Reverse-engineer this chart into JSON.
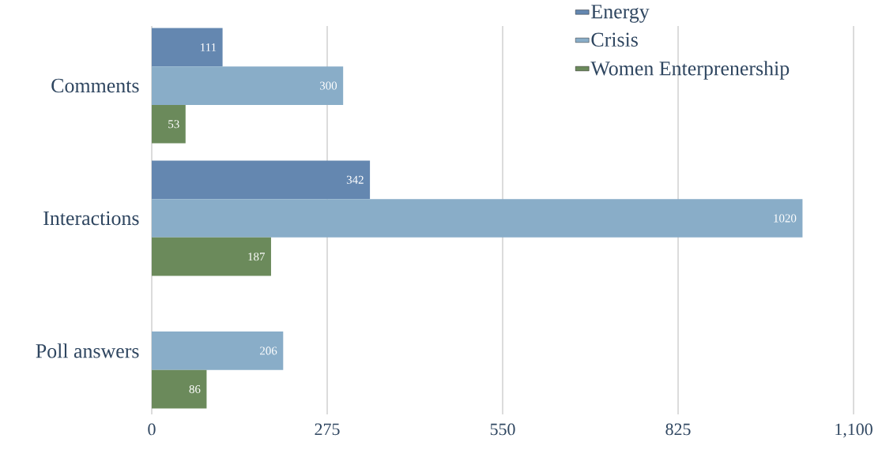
{
  "chart_data": {
    "type": "bar",
    "orientation": "horizontal",
    "categories": [
      "Comments",
      "Interactions",
      "Poll answers"
    ],
    "series": [
      {
        "name": "Energy",
        "color": "#6487b0",
        "values": [
          111,
          342,
          null
        ]
      },
      {
        "name": "Crisis",
        "color": "#89adc8",
        "values": [
          300,
          1020,
          206
        ]
      },
      {
        "name": "Women Enterprenership",
        "color": "#6b8a5b",
        "values": [
          53,
          187,
          86
        ]
      }
    ],
    "xlim": [
      0,
      1100
    ],
    "xticks": [
      0,
      275,
      550,
      825,
      {
        "value": 1100,
        "label": "1,100"
      }
    ],
    "grid": "x",
    "legend": "top right",
    "data_labels": true
  }
}
